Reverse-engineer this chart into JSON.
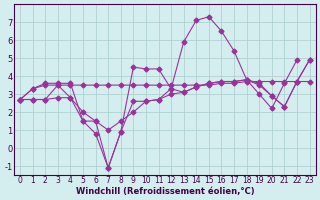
{
  "xlabel": "Windchill (Refroidissement éolien,°C)",
  "background_color": "#d4eef0",
  "line_color": "#993399",
  "grid_color": "#aacccc",
  "xlim": [
    -0.5,
    23.5
  ],
  "ylim": [
    -1.5,
    8.0
  ],
  "yticks": [
    -1,
    0,
    1,
    2,
    3,
    4,
    5,
    6,
    7
  ],
  "xticks": [
    0,
    1,
    2,
    3,
    4,
    5,
    6,
    7,
    8,
    9,
    10,
    11,
    12,
    13,
    14,
    15,
    16,
    17,
    18,
    19,
    20,
    21,
    22,
    23
  ],
  "series": [
    [
      2.7,
      3.3,
      3.6,
      3.6,
      3.6,
      1.5,
      1.5,
      -1.1,
      0.9,
      4.5,
      4.4,
      4.4,
      3.3,
      5.9,
      7.1,
      7.3,
      6.5,
      5.4,
      3.8,
      3.0,
      2.2,
      3.6,
      4.9,
      null
    ],
    [
      2.7,
      3.3,
      3.5,
      3.5,
      2.8,
      1.5,
      0.8,
      -1.1,
      0.9,
      2.6,
      2.6,
      2.7,
      3.3,
      3.1,
      3.4,
      3.6,
      3.7,
      3.7,
      3.8,
      3.5,
      2.9,
      2.3,
      3.7,
      4.9
    ],
    [
      2.7,
      2.7,
      2.7,
      3.5,
      3.5,
      3.5,
      3.5,
      3.5,
      3.5,
      3.5,
      3.5,
      3.5,
      3.5,
      3.5,
      3.5,
      3.5,
      3.6,
      3.6,
      3.7,
      3.7,
      3.7,
      3.7,
      3.7,
      3.7
    ],
    [
      2.7,
      2.7,
      2.7,
      2.8,
      2.8,
      2.0,
      1.5,
      1.0,
      1.5,
      2.0,
      2.6,
      2.7,
      3.0,
      3.1,
      3.4,
      3.6,
      3.7,
      3.7,
      3.8,
      3.6,
      2.9,
      2.3,
      3.7,
      4.9
    ]
  ]
}
